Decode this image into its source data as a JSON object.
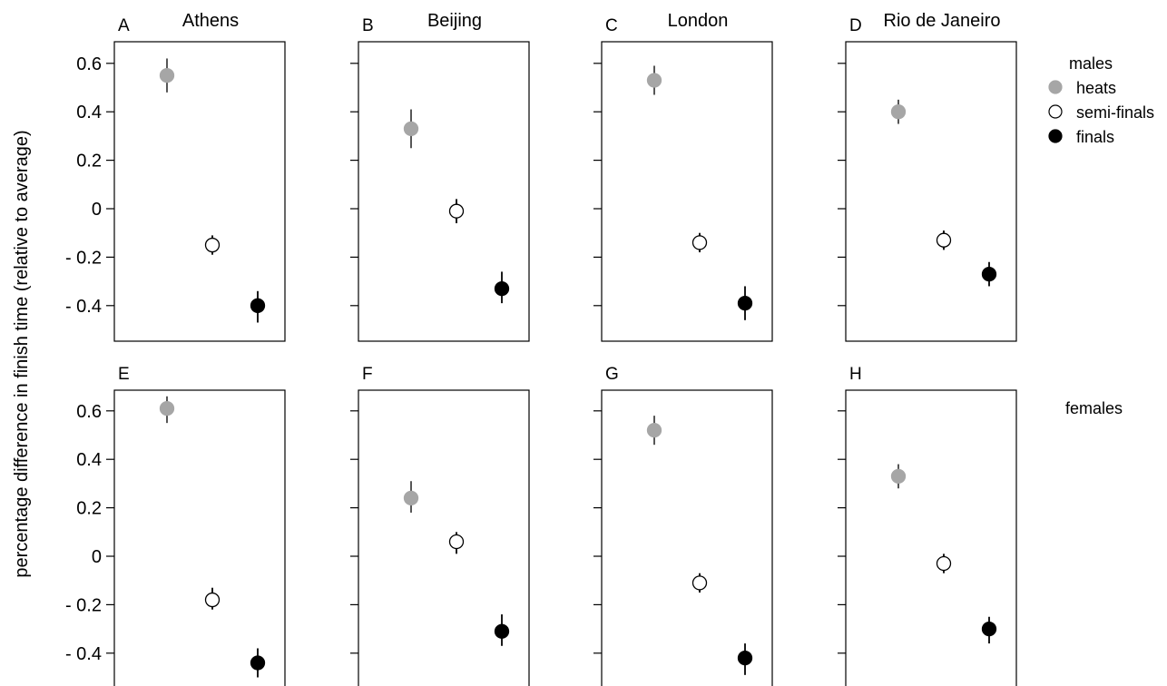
{
  "chart_data": {
    "type": "scatter",
    "ylabel": "percentage difference in finish time (relative to average)",
    "yticks": [
      {
        "value": 0.6,
        "label": "0.6"
      },
      {
        "value": 0.4,
        "label": "0.4"
      },
      {
        "value": 0.2,
        "label": "0.2"
      },
      {
        "value": 0.0,
        "label": "0"
      },
      {
        "value": -0.2,
        "label": "- 0.2"
      },
      {
        "value": -0.4,
        "label": "- 0.4"
      }
    ],
    "series_styles": [
      {
        "name": "heats",
        "fill": "#a6a6a6",
        "stroke": "#a6a6a6"
      },
      {
        "name": "semi-finals",
        "fill": "#ffffff",
        "stroke": "#000000"
      },
      {
        "name": "finals",
        "fill": "#000000",
        "stroke": "#000000"
      }
    ],
    "legend": {
      "title": "males",
      "entries": [
        "heats",
        "semi-finals",
        "finals"
      ]
    },
    "row_labels": [
      "",
      "females"
    ],
    "panels": [
      {
        "letter": "A",
        "title": "Athens",
        "row": 0,
        "col": 0,
        "points": [
          {
            "series": "heats",
            "y": 0.55,
            "lo": 0.48,
            "hi": 0.62
          },
          {
            "series": "semi-finals",
            "y": -0.15,
            "lo": -0.19,
            "hi": -0.11
          },
          {
            "series": "finals",
            "y": -0.4,
            "lo": -0.47,
            "hi": -0.34
          }
        ]
      },
      {
        "letter": "B",
        "title": "Beijing",
        "row": 0,
        "col": 1,
        "points": [
          {
            "series": "heats",
            "y": 0.33,
            "lo": 0.25,
            "hi": 0.41
          },
          {
            "series": "semi-finals",
            "y": -0.01,
            "lo": -0.06,
            "hi": 0.04
          },
          {
            "series": "finals",
            "y": -0.33,
            "lo": -0.39,
            "hi": -0.26
          }
        ]
      },
      {
        "letter": "C",
        "title": "London",
        "row": 0,
        "col": 2,
        "points": [
          {
            "series": "heats",
            "y": 0.53,
            "lo": 0.47,
            "hi": 0.59
          },
          {
            "series": "semi-finals",
            "y": -0.14,
            "lo": -0.18,
            "hi": -0.1
          },
          {
            "series": "finals",
            "y": -0.39,
            "lo": -0.46,
            "hi": -0.32
          }
        ]
      },
      {
        "letter": "D",
        "title": "Rio de Janeiro",
        "row": 0,
        "col": 3,
        "points": [
          {
            "series": "heats",
            "y": 0.4,
            "lo": 0.35,
            "hi": 0.45
          },
          {
            "series": "semi-finals",
            "y": -0.13,
            "lo": -0.17,
            "hi": -0.09
          },
          {
            "series": "finals",
            "y": -0.27,
            "lo": -0.32,
            "hi": -0.22
          }
        ]
      },
      {
        "letter": "E",
        "title": "",
        "row": 1,
        "col": 0,
        "points": [
          {
            "series": "heats",
            "y": 0.61,
            "lo": 0.55,
            "hi": 0.66
          },
          {
            "series": "semi-finals",
            "y": -0.18,
            "lo": -0.22,
            "hi": -0.13
          },
          {
            "series": "finals",
            "y": -0.44,
            "lo": -0.5,
            "hi": -0.38
          }
        ]
      },
      {
        "letter": "F",
        "title": "",
        "row": 1,
        "col": 1,
        "points": [
          {
            "series": "heats",
            "y": 0.24,
            "lo": 0.18,
            "hi": 0.31
          },
          {
            "series": "semi-finals",
            "y": 0.06,
            "lo": 0.01,
            "hi": 0.1
          },
          {
            "series": "finals",
            "y": -0.31,
            "lo": -0.37,
            "hi": -0.24
          }
        ]
      },
      {
        "letter": "G",
        "title": "",
        "row": 1,
        "col": 2,
        "points": [
          {
            "series": "heats",
            "y": 0.52,
            "lo": 0.46,
            "hi": 0.58
          },
          {
            "series": "semi-finals",
            "y": -0.11,
            "lo": -0.15,
            "hi": -0.07
          },
          {
            "series": "finals",
            "y": -0.42,
            "lo": -0.49,
            "hi": -0.36
          }
        ]
      },
      {
        "letter": "H",
        "title": "",
        "row": 1,
        "col": 3,
        "points": [
          {
            "series": "heats",
            "y": 0.33,
            "lo": 0.28,
            "hi": 0.38
          },
          {
            "series": "semi-finals",
            "y": -0.03,
            "lo": -0.07,
            "hi": 0.01
          },
          {
            "series": "finals",
            "y": -0.3,
            "lo": -0.36,
            "hi": -0.25
          }
        ]
      }
    ]
  }
}
